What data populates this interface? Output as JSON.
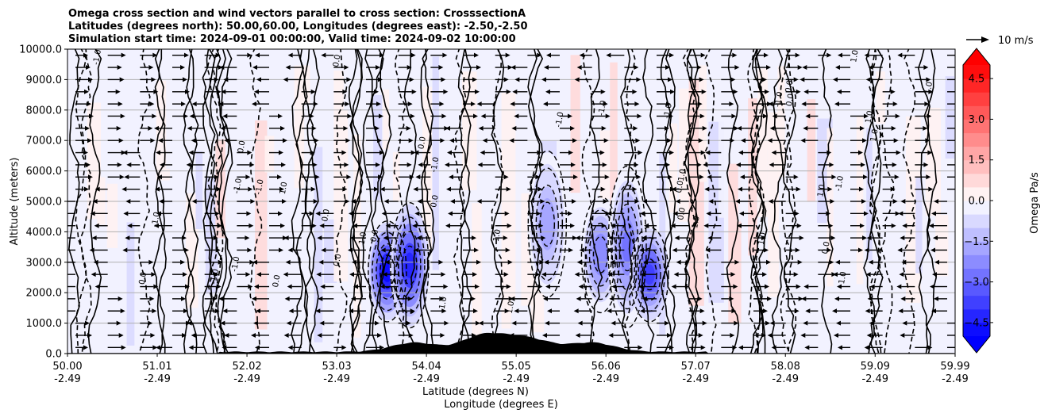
{
  "chart_data": {
    "type": "contour",
    "title_lines": [
      "Omega cross section and wind vectors parallel to cross section: CrosssectionA",
      "Latitudes (degrees north): 50.00,60.00, Longitudes (degrees east): -2.50,-2.50",
      "Simulation start time: 2024-09-01 00:00:00, Valid time: 2024-09-02 10:00:00"
    ],
    "ylabel": "Altitude (meters)",
    "xlabel_lat": "Latitude (degrees N)",
    "xlabel_lon": "Longitude (degrees E)",
    "ylim": [
      0,
      10000
    ],
    "y_ticks": [
      "0.0",
      "1000.0",
      "2000.0",
      "3000.0",
      "4000.0",
      "5000.0",
      "6000.0",
      "7000.0",
      "8000.0",
      "9000.0",
      "10000.0"
    ],
    "y_tick_values": [
      0,
      1000,
      2000,
      3000,
      4000,
      5000,
      6000,
      7000,
      8000,
      9000,
      10000
    ],
    "grid": true,
    "x_ticks": [
      {
        "lat": "50.00",
        "lon": "-2.49",
        "pos": 0.0
      },
      {
        "lat": "51.01",
        "lon": "-2.49",
        "pos": 0.1011
      },
      {
        "lat": "52.02",
        "lon": "-2.49",
        "pos": 0.2022
      },
      {
        "lat": "53.03",
        "lon": "-2.49",
        "pos": 0.3033
      },
      {
        "lat": "54.04",
        "lon": "-2.49",
        "pos": 0.4044
      },
      {
        "lat": "55.05",
        "lon": "-2.49",
        "pos": 0.5055
      },
      {
        "lat": "56.06",
        "lon": "-2.49",
        "pos": 0.6066
      },
      {
        "lat": "57.07",
        "lon": "-2.49",
        "pos": 0.7077
      },
      {
        "lat": "58.08",
        "lon": "-2.49",
        "pos": 0.8088
      },
      {
        "lat": "59.09",
        "lon": "-2.49",
        "pos": 0.9099
      },
      {
        "lat": "59.99",
        "lon": "-2.49",
        "pos": 1.0
      }
    ],
    "colorbar": {
      "label": "Omega Pa/s",
      "range": [
        -5.0,
        5.0
      ],
      "ticks": [
        "4.5",
        "3.0",
        "1.5",
        "0.0",
        "−1.5",
        "−3.0",
        "−4.5"
      ],
      "tick_values": [
        4.5,
        3.0,
        1.5,
        0.0,
        -1.5,
        -3.0,
        -4.5
      ],
      "levels": 20,
      "extend": "both",
      "cmap": "bwr"
    },
    "quiver_key_label": "10 m/s",
    "contour_levels_labeled": [
      "0.0",
      "1.0",
      "-1.0"
    ],
    "omega_features": [
      {
        "lat": 53.6,
        "alt_min": 1200,
        "alt_max": 4200,
        "omega_min": -5.0
      },
      {
        "lat": 53.85,
        "alt_min": 1000,
        "alt_max": 4800,
        "omega_min": -4.5
      },
      {
        "lat": 55.4,
        "alt_min": 2000,
        "alt_max": 6500,
        "omega_min": -2.0
      },
      {
        "lat": 56.0,
        "alt_min": 1500,
        "alt_max": 5000,
        "omega_min": -2.5
      },
      {
        "lat": 56.3,
        "alt_min": 1000,
        "alt_max": 6000,
        "omega_min": -3.0
      },
      {
        "lat": 56.55,
        "alt_min": 1200,
        "alt_max": 4000,
        "omega_min": -4.0
      }
    ],
    "terrain_peaks": [
      {
        "lat": 53.9,
        "alt": 300
      },
      {
        "lat": 54.7,
        "alt": 550
      },
      {
        "lat": 55.2,
        "alt": 400
      },
      {
        "lat": 55.9,
        "alt": 300
      }
    ],
    "colors": {
      "neg_max": "#0000ff",
      "pos_max": "#ff0000",
      "neutral": "#ffffff",
      "terrain": "#000000"
    }
  }
}
